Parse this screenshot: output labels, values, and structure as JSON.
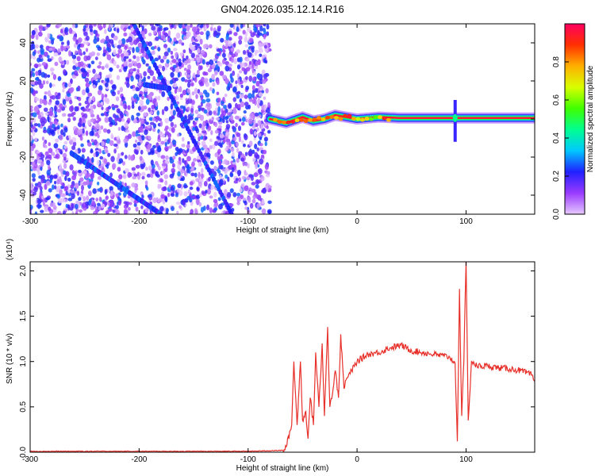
{
  "title": "GN04.2026.035.12.14.R16",
  "chart_data": [
    {
      "type": "heatmap",
      "xlabel": "Height of straight line (km)",
      "ylabel": "Frequency (Hz)",
      "xlim": [
        -300,
        163
      ],
      "ylim": [
        -50,
        50
      ],
      "xticks": [
        -300,
        -200,
        -100,
        0,
        100
      ],
      "xtick_labels": [
        "-300",
        "-200",
        "-100",
        "0",
        "100"
      ],
      "yticks": [
        -40,
        -20,
        0,
        20,
        40
      ],
      "ytick_labels": [
        "-40",
        "-20",
        "0",
        "20",
        "40"
      ],
      "colorbar": {
        "label": "Normalized spectral amplitude",
        "range": [
          0,
          1
        ],
        "ticks": [
          0.0,
          0.2,
          0.4,
          0.6,
          0.8
        ],
        "tick_labels": [
          "0.0",
          "0.2",
          "0.4",
          "0.6",
          "0.8"
        ],
        "colors": [
          "#e6c8ff",
          "#9a3bff",
          "#2020ff",
          "#00c8ff",
          "#00ff90",
          "#40ff00",
          "#d8ff00",
          "#ffb000",
          "#ff3000",
          "#ff0060"
        ]
      },
      "noise_region_x": [
        -300,
        -80
      ],
      "diagonal_streaks": [
        {
          "x": [
            -205,
            -115
          ],
          "y": [
            50,
            -50
          ]
        },
        {
          "x": [
            -262,
            -180
          ],
          "y": [
            -18,
            -50
          ]
        },
        {
          "x": [
            -195,
            -172
          ],
          "y": [
            18,
            16
          ]
        }
      ],
      "signal_track": {
        "x": [
          -80,
          -65,
          -50,
          -40,
          -30,
          -20,
          -10,
          0,
          20,
          40,
          60,
          80,
          88,
          92,
          100,
          163
        ],
        "y": [
          0,
          -2,
          1,
          -1,
          0,
          2,
          1,
          0,
          1,
          0.5,
          0.5,
          0.5,
          0.5,
          0.5,
          0.5,
          0.5
        ]
      },
      "spike": {
        "x": 90,
        "y_range": [
          -12,
          10
        ]
      }
    },
    {
      "type": "line",
      "xlabel": "Height of straight line (km)",
      "ylabel": "SNR (10 * v/v)",
      "y_multiplier": "(x10⁴)",
      "xlim": [
        -300,
        163
      ],
      "ylim": [
        0,
        2.1
      ],
      "xticks": [
        -300,
        -200,
        -100,
        0,
        100
      ],
      "xtick_labels": [
        "-300",
        "-200",
        "-100",
        "0",
        "100"
      ],
      "yticks": [
        0.0,
        0.5,
        1.0,
        1.5,
        2.0
      ],
      "ytick_labels": [
        "0.0",
        "0.5",
        "1.0",
        "1.5",
        "2.0"
      ],
      "series": [
        {
          "color": "#e8302a",
          "x": [
            -300,
            -200,
            -100,
            -68,
            -65,
            -60,
            -58,
            -55,
            -52,
            -50,
            -47,
            -45,
            -43,
            -40,
            -38,
            -35,
            -32,
            -30,
            -27,
            -25,
            -22,
            -20,
            -17,
            -15,
            -12,
            -10,
            -5,
            0,
            10,
            20,
            30,
            40,
            50,
            60,
            70,
            80,
            85,
            88,
            90,
            92,
            94,
            96,
            98,
            100,
            102,
            105,
            110,
            120,
            130,
            140,
            150,
            160,
            163
          ],
          "y": [
            0.01,
            0.01,
            0.01,
            0.02,
            0.06,
            0.3,
            1.0,
            0.3,
            1.0,
            0.35,
            0.45,
            0.15,
            0.6,
            0.3,
            1.1,
            0.5,
            1.2,
            0.4,
            1.38,
            0.5,
            0.7,
            0.9,
            0.6,
            1.3,
            0.7,
            0.8,
            0.9,
            1.0,
            1.08,
            1.1,
            1.15,
            1.18,
            1.12,
            1.1,
            1.08,
            1.06,
            1.05,
            1.0,
            0.98,
            0.12,
            1.8,
            0.4,
            1.0,
            2.1,
            0.35,
            1.0,
            0.95,
            0.95,
            0.93,
            0.92,
            0.9,
            0.85,
            0.78
          ]
        }
      ]
    }
  ]
}
